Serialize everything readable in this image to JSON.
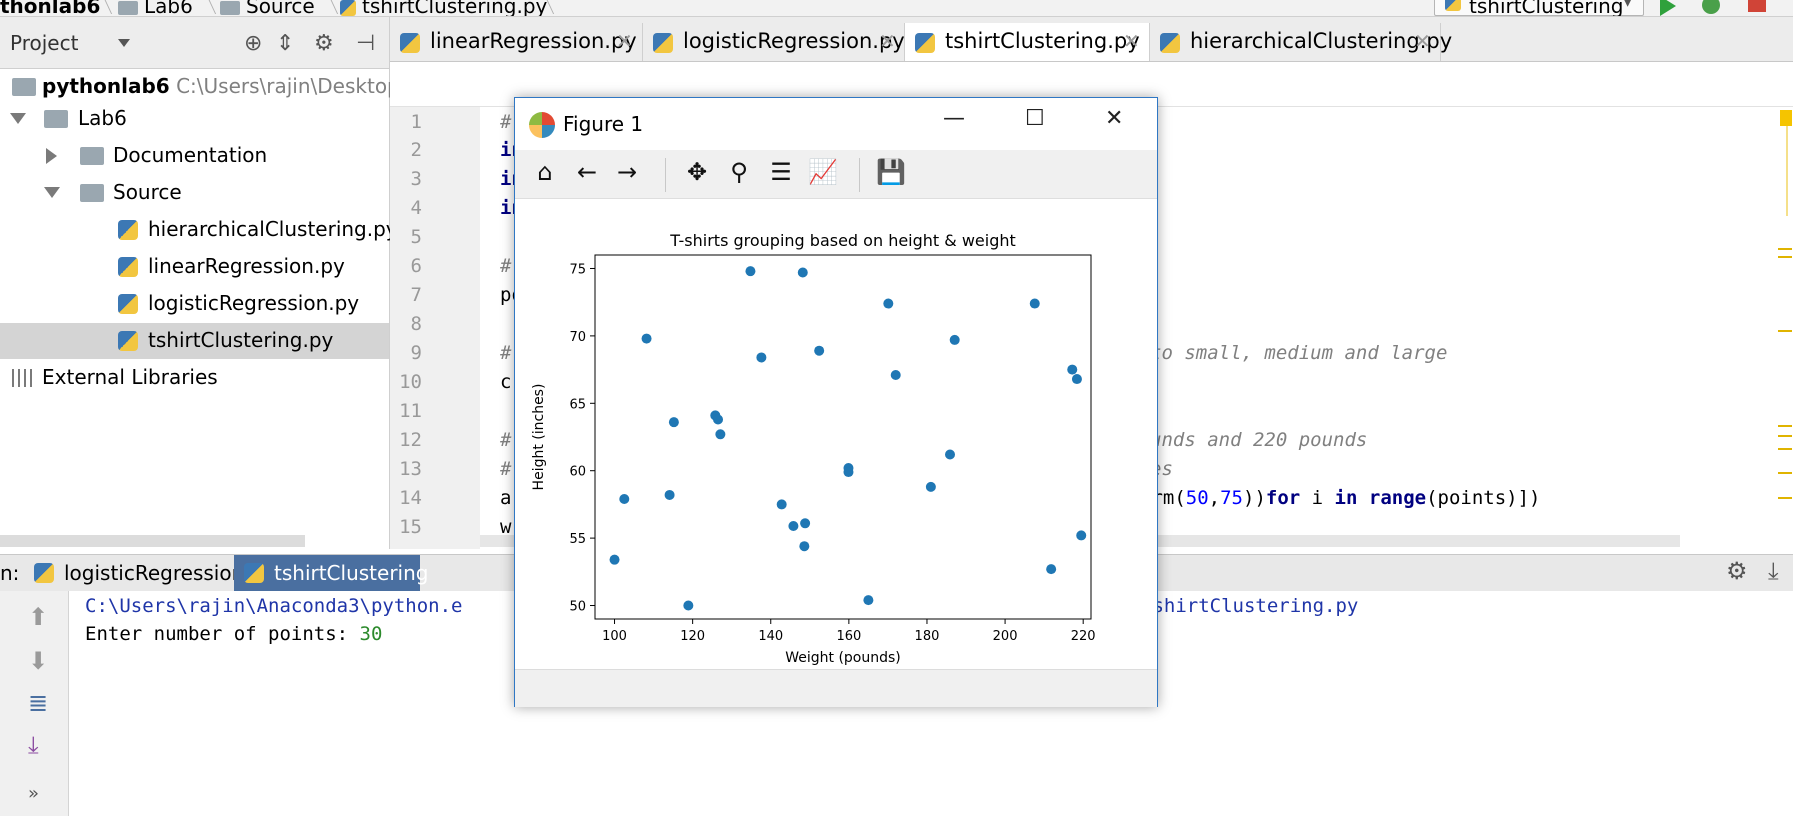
{
  "breadcrumbs": [
    "thonlab6",
    "Lab6",
    "Source",
    "tshirtClustering.py"
  ],
  "run_config": "tshirtClustering",
  "project_panel": {
    "title": "Project",
    "tree": [
      {
        "label": "pythonlab6",
        "path": "C:\\Users\\rajin\\Desktop\\p"
      },
      {
        "label": "Lab6"
      },
      {
        "label": "Documentation"
      },
      {
        "label": "Source"
      },
      {
        "label": "hierarchicalClustering.py"
      },
      {
        "label": "linearRegression.py"
      },
      {
        "label": "logisticRegression.py"
      },
      {
        "label": "tshirtClustering.py"
      },
      {
        "label": "External Libraries"
      }
    ]
  },
  "editor_tabs": [
    {
      "label": "linearRegression.py",
      "active": false
    },
    {
      "label": "logisticRegression.py",
      "active": false
    },
    {
      "label": "tshirtClustering.py",
      "active": true
    },
    {
      "label": "hierarchicalClustering.py",
      "active": false
    }
  ],
  "editor": {
    "line_numbers": [
      "1",
      "2",
      "3",
      "4",
      "5",
      "6",
      "7",
      "8",
      "9",
      "10",
      "11",
      "12",
      "13",
      "14",
      "15"
    ],
    "visible_code": [
      {
        "line": "1",
        "text": "#"
      },
      {
        "line": "2",
        "text": "in"
      },
      {
        "line": "3",
        "text": "in"
      },
      {
        "line": "4",
        "text": "in"
      },
      {
        "line": "6",
        "text": "#"
      },
      {
        "line": "7",
        "text": "po"
      },
      {
        "line": "9",
        "text": "#",
        "right_text": "to small, medium and large"
      },
      {
        "line": "10",
        "text": "c"
      },
      {
        "line": "12",
        "text": "#",
        "right_text": "unds and 220 pounds"
      },
      {
        "line": "13",
        "text": "#",
        "right_text": "es"
      },
      {
        "line": "14",
        "text": "a",
        "right_pre": "orm(",
        "right_num1": "50",
        "right_comma": ",",
        "right_num2": "75",
        "right_post1": "))",
        "right_kw1": "for",
        "right_mid1": " i ",
        "right_kw2": "in",
        "right_fn": " range",
        "right_post2": "(points)])"
      },
      {
        "line": "15",
        "text": "w"
      }
    ]
  },
  "run_panel": {
    "prefix": "n:",
    "tabs": [
      {
        "label": "logisticRegression",
        "active": false
      },
      {
        "label": "tshirtClustering",
        "active": true
      }
    ],
    "console": {
      "line1_left": "C:\\Users\\rajin\\Anaconda3\\python.e",
      "line1_right": "tshirtClustering.py",
      "prompt": "Enter number of points: ",
      "input_value": "30"
    },
    "more": "»"
  },
  "figure_window": {
    "title": "Figure 1",
    "toolbar": [
      "home-icon",
      "back-arrow-icon",
      "forward-arrow-icon",
      "pan-icon",
      "zoom-icon",
      "subplots-icon",
      "edit-axis-icon",
      "save-icon"
    ]
  },
  "chart_data": {
    "type": "scatter",
    "title": "T-shirts grouping based on height & weight",
    "xlabel": "Weight (pounds)",
    "ylabel": "Height (inches)",
    "xlim": [
      95,
      222
    ],
    "ylim": [
      49,
      76
    ],
    "xticks": [
      100,
      120,
      140,
      160,
      180,
      200,
      220
    ],
    "yticks": [
      50,
      55,
      60,
      65,
      70,
      75
    ],
    "point_color": "#1f77b4",
    "grid": false,
    "points": [
      {
        "x": 100,
        "y": 53.4
      },
      {
        "x": 102.5,
        "y": 57.9
      },
      {
        "x": 108.2,
        "y": 69.8
      },
      {
        "x": 114.1,
        "y": 58.2
      },
      {
        "x": 115.2,
        "y": 63.6
      },
      {
        "x": 118.9,
        "y": 50.0
      },
      {
        "x": 125.8,
        "y": 64.1
      },
      {
        "x": 126.5,
        "y": 63.8
      },
      {
        "x": 127.1,
        "y": 62.7
      },
      {
        "x": 134.8,
        "y": 74.8
      },
      {
        "x": 137.6,
        "y": 68.4
      },
      {
        "x": 142.8,
        "y": 57.5
      },
      {
        "x": 145.8,
        "y": 55.9
      },
      {
        "x": 148.2,
        "y": 74.7
      },
      {
        "x": 148.6,
        "y": 54.4
      },
      {
        "x": 148.8,
        "y": 56.1
      },
      {
        "x": 152.4,
        "y": 68.9
      },
      {
        "x": 159.9,
        "y": 60.2
      },
      {
        "x": 159.9,
        "y": 59.9
      },
      {
        "x": 165.0,
        "y": 50.4
      },
      {
        "x": 170.1,
        "y": 72.4
      },
      {
        "x": 172.0,
        "y": 67.1
      },
      {
        "x": 181.0,
        "y": 58.8
      },
      {
        "x": 185.9,
        "y": 61.2
      },
      {
        "x": 187.1,
        "y": 69.7
      },
      {
        "x": 207.6,
        "y": 72.4
      },
      {
        "x": 211.8,
        "y": 52.7
      },
      {
        "x": 217.2,
        "y": 67.5
      },
      {
        "x": 218.4,
        "y": 66.8
      },
      {
        "x": 219.5,
        "y": 55.2
      }
    ]
  }
}
